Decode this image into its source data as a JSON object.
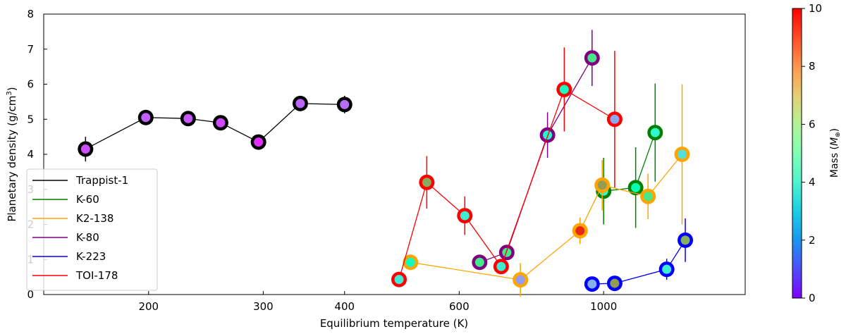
{
  "chart_data": {
    "type": "scatter",
    "xlabel": "Equilibrium temperature (K)",
    "ylabel_prefix": "Planetary density (g/cm",
    "ylabel_sup": "3",
    "ylabel_suffix": ")",
    "x_scale": "log",
    "xlim": [
      138,
      1650
    ],
    "ylim": [
      0,
      8
    ],
    "x_ticks": [
      200,
      300,
      400,
      600,
      1000
    ],
    "x_tick_labels": [
      "200",
      "300",
      "400",
      "600",
      "1000"
    ],
    "y_ticks": [
      0,
      1,
      2,
      3,
      4,
      5,
      6,
      7,
      8
    ],
    "y_tick_labels": [
      "0",
      "1",
      "2",
      "3",
      "4",
      "5",
      "6",
      "7",
      "8"
    ],
    "legend_position": "lower-left",
    "colorbar": {
      "label_prefix": "Mass (",
      "label_symbol": "M",
      "label_sub": "⊕",
      "label_suffix": ")",
      "min": 0,
      "max": 10,
      "cmap": "rainbow",
      "ticks": [
        0,
        2,
        4,
        6,
        8,
        10
      ],
      "tick_labels": [
        "0",
        "2",
        "4",
        "6",
        "8",
        "10"
      ]
    },
    "series": [
      {
        "name": "Trappist-1",
        "color": "#000000",
        "points": [
          {
            "x": 160,
            "y": 4.15,
            "err": 0.35,
            "mass": 1.0
          },
          {
            "x": 198,
            "y": 5.05,
            "err": 0.2,
            "mass": 1.2
          },
          {
            "x": 230,
            "y": 5.02,
            "err": 0.2,
            "mass": 1.1
          },
          {
            "x": 258,
            "y": 4.9,
            "err": 0.2,
            "mass": 0.9
          },
          {
            "x": 295,
            "y": 4.35,
            "err": 0.2,
            "mass": 0.6
          },
          {
            "x": 342,
            "y": 5.45,
            "err": 0.2,
            "mass": 1.3
          },
          {
            "x": 400,
            "y": 5.42,
            "err": 0.25,
            "mass": 1.4
          }
        ]
      },
      {
        "name": "K-60",
        "color": "#008000",
        "points": [
          {
            "x": 1000,
            "y": 2.95,
            "err": 0.95,
            "mass": 4.0
          },
          {
            "x": 1120,
            "y": 3.05,
            "err": 1.15,
            "mass": 5.1
          },
          {
            "x": 1200,
            "y": 4.62,
            "err": 1.4,
            "mass": 4.1
          }
        ]
      },
      {
        "name": "K2-138",
        "color": "#ffa500",
        "points": [
          {
            "x": 505,
            "y": 0.92,
            "err": 0.0,
            "mass": 4.7
          },
          {
            "x": 745,
            "y": 0.42,
            "err": 0.48,
            "mass": 2.1
          },
          {
            "x": 920,
            "y": 1.82,
            "err": 0.38,
            "mass": 9.5
          },
          {
            "x": 995,
            "y": 3.12,
            "err": 0.72,
            "mass": 7.9
          },
          {
            "x": 1170,
            "y": 2.8,
            "err": 0.65,
            "mass": 6.4
          },
          {
            "x": 1320,
            "y": 4.0,
            "err": 2.0,
            "mass": 3.4
          }
        ]
      },
      {
        "name": "K-80",
        "color": "#800080",
        "points": [
          {
            "x": 645,
            "y": 0.92,
            "err": 0.0,
            "mass": 6.3
          },
          {
            "x": 710,
            "y": 1.2,
            "err": 0.0,
            "mass": 6.4
          },
          {
            "x": 820,
            "y": 4.55,
            "err": 0.65,
            "mass": 4.2
          },
          {
            "x": 960,
            "y": 6.75,
            "err": 0.8,
            "mass": 6.4
          }
        ]
      },
      {
        "name": "K-223",
        "color": "#0000ff",
        "points": [
          {
            "x": 960,
            "y": 0.3,
            "err": 0.0,
            "mass": 2.4
          },
          {
            "x": 1040,
            "y": 0.32,
            "err": 0.0,
            "mass": 7.9
          },
          {
            "x": 1250,
            "y": 0.72,
            "err": 0.3,
            "mass": 3.8
          },
          {
            "x": 1335,
            "y": 1.55,
            "err": 0.62,
            "mass": 7.6
          }
        ]
      },
      {
        "name": "TOI-178",
        "color": "#ff0000",
        "points": [
          {
            "x": 485,
            "y": 0.43,
            "err": 0.2,
            "mass": 3.7
          },
          {
            "x": 535,
            "y": 3.2,
            "err": 0.75,
            "mass": 7.7
          },
          {
            "x": 612,
            "y": 2.25,
            "err": 0.55,
            "mass": 3.8
          },
          {
            "x": 696,
            "y": 0.8,
            "err": 0.2,
            "mass": 3.8
          },
          {
            "x": 870,
            "y": 5.85,
            "err": 1.2,
            "mass": 4.5
          },
          {
            "x": 1040,
            "y": 5.0,
            "err": 1.95,
            "mass": 2.3
          }
        ]
      }
    ]
  }
}
